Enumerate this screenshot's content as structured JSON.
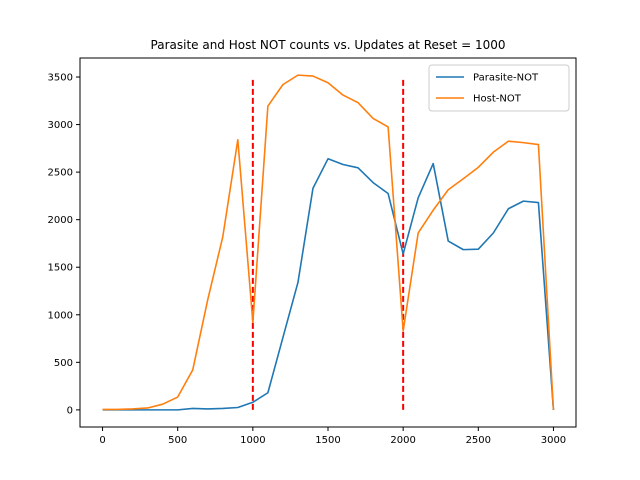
{
  "chart_data": {
    "type": "line",
    "title": "Parasite and Host NOT counts vs. Updates at Reset = 1000",
    "xlabel": "",
    "ylabel": "",
    "xlim": [
      -150,
      3150
    ],
    "ylim": [
      -180,
      3700
    ],
    "xticks": [
      0,
      500,
      1000,
      1500,
      2000,
      2500,
      3000
    ],
    "yticks": [
      0,
      500,
      1000,
      1500,
      2000,
      2500,
      3000,
      3500
    ],
    "grid": false,
    "legend_position": "top-right",
    "x": [
      0,
      100,
      200,
      300,
      400,
      500,
      600,
      700,
      800,
      900,
      1000,
      1100,
      1200,
      1300,
      1400,
      1500,
      1600,
      1700,
      1800,
      1900,
      2000,
      2100,
      2200,
      2300,
      2400,
      2500,
      2600,
      2700,
      2800,
      2900,
      3000
    ],
    "series": [
      {
        "name": "Parasite-NOT",
        "color": "#1f77b4",
        "values": [
          0,
          0,
          0,
          0,
          0,
          0,
          15,
          10,
          15,
          25,
          80,
          180,
          760,
          1340,
          2330,
          2640,
          2580,
          2545,
          2390,
          2275,
          1640,
          2230,
          2590,
          1775,
          1685,
          1690,
          1860,
          2115,
          2195,
          2180,
          0
        ]
      },
      {
        "name": "Host-NOT",
        "color": "#ff7f0e",
        "values": [
          5,
          5,
          10,
          20,
          60,
          135,
          420,
          1160,
          1820,
          2840,
          920,
          3195,
          3420,
          3520,
          3510,
          3440,
          3310,
          3230,
          3065,
          2975,
          830,
          1860,
          2100,
          2315,
          2430,
          2550,
          2710,
          2825,
          2810,
          2790,
          0
        ]
      }
    ],
    "reset_lines": {
      "color": "#ff0000",
      "x": [
        1000,
        2000
      ],
      "y_range": [
        0,
        3480
      ]
    }
  }
}
